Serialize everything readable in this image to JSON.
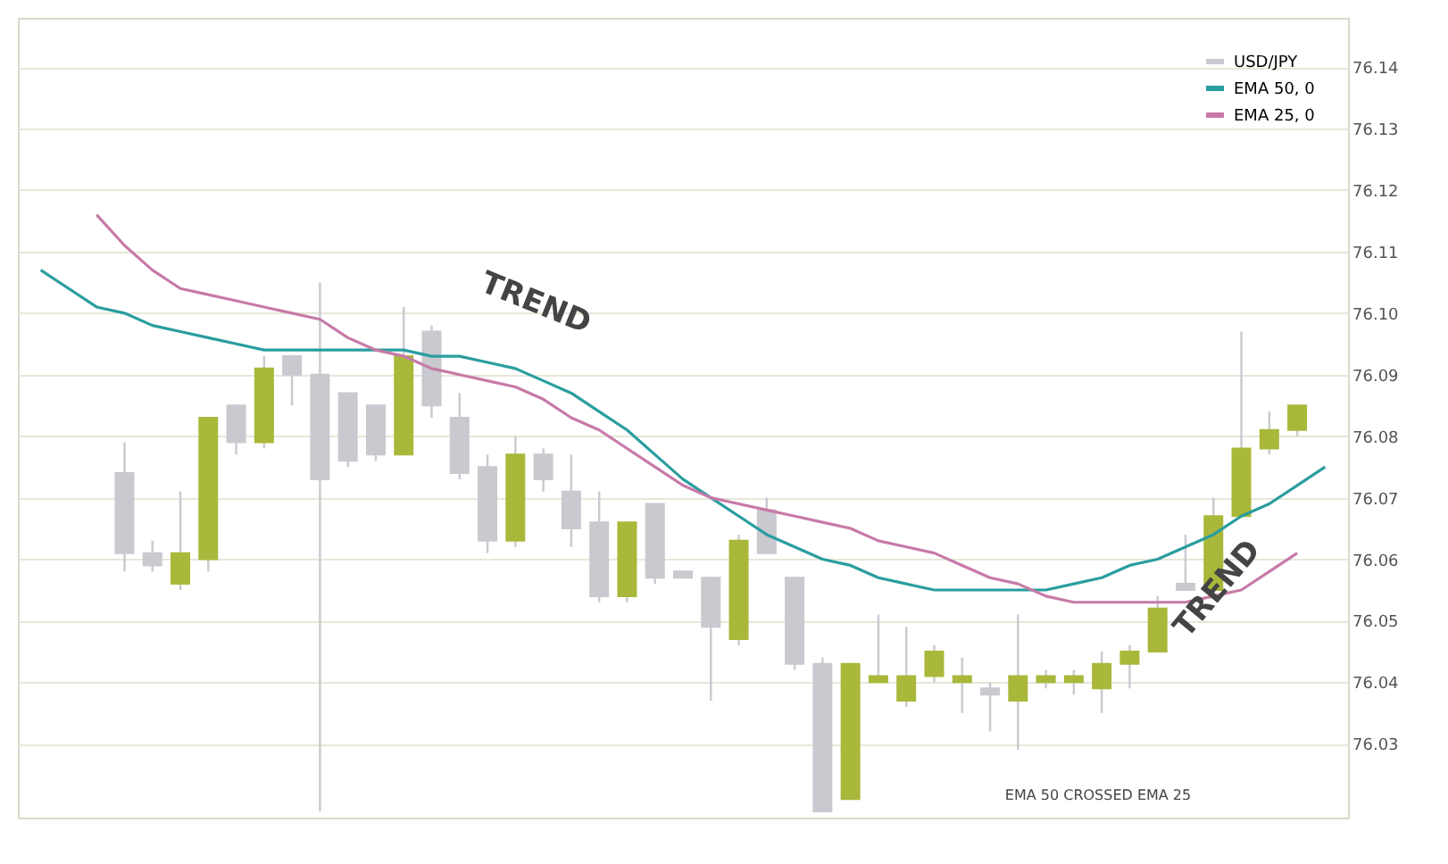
{
  "chart_data": {
    "type": "candlestick",
    "categories": [
      null,
      null,
      null,
      null,
      null,
      null,
      null,
      null,
      null,
      null,
      null,
      null,
      null,
      null,
      null,
      null,
      null,
      null,
      null,
      null,
      null,
      null,
      null,
      null,
      null,
      null,
      null,
      null,
      null,
      null,
      null,
      null,
      null,
      null,
      null,
      null,
      null,
      null,
      null,
      null,
      null,
      null,
      null,
      null,
      null,
      null,
      null
    ],
    "series": [
      {
        "name": "USD/JPY",
        "color": "#c9c9cf",
        "ohlc": [
          null,
          null,
          null,
          [
            76.074,
            76.079,
            76.058,
            76.061
          ],
          [
            76.061,
            76.063,
            76.058,
            76.059
          ],
          [
            76.056,
            76.071,
            76.055,
            76.061
          ],
          [
            76.06,
            76.083,
            76.058,
            76.083
          ],
          [
            76.085,
            76.085,
            76.077,
            76.079
          ],
          [
            76.079,
            76.093,
            76.078,
            76.091
          ],
          [
            76.093,
            76.093,
            76.085,
            76.09
          ],
          [
            76.09,
            76.105,
            76.019,
            76.073
          ],
          [
            76.087,
            76.087,
            76.075,
            76.076
          ],
          [
            76.085,
            76.085,
            76.076,
            76.077
          ],
          [
            76.077,
            76.101,
            76.077,
            76.093
          ],
          [
            76.097,
            76.098,
            76.083,
            76.085
          ],
          [
            76.083,
            76.087,
            76.073,
            76.074
          ],
          [
            76.075,
            76.077,
            76.061,
            76.063
          ],
          [
            76.063,
            76.08,
            76.062,
            76.077
          ],
          [
            76.077,
            76.078,
            76.071,
            76.073
          ],
          [
            76.071,
            76.077,
            76.062,
            76.065
          ],
          [
            76.066,
            76.071,
            76.053,
            76.054
          ],
          [
            76.054,
            76.066,
            76.053,
            76.066
          ],
          [
            76.069,
            76.069,
            76.056,
            76.057
          ],
          [
            76.058,
            76.058,
            76.057,
            76.057
          ],
          [
            76.057,
            76.057,
            76.037,
            76.049
          ],
          [
            76.047,
            76.064,
            76.046,
            76.063
          ],
          [
            76.068,
            76.07,
            76.061,
            76.061
          ],
          [
            76.057,
            76.057,
            76.042,
            76.043
          ],
          [
            76.043,
            76.044,
            76.019,
            76.019
          ],
          [
            76.021,
            76.043,
            76.021,
            76.043
          ],
          [
            76.04,
            76.051,
            76.04,
            76.041
          ],
          [
            76.037,
            76.049,
            76.036,
            76.041
          ],
          [
            76.041,
            76.046,
            76.04,
            76.045
          ],
          [
            76.04,
            76.044,
            76.035,
            76.041
          ],
          [
            76.039,
            76.04,
            76.032,
            76.038
          ],
          [
            76.037,
            76.051,
            76.029,
            76.041
          ],
          [
            76.04,
            76.042,
            76.039,
            76.041
          ],
          [
            76.04,
            76.042,
            76.038,
            76.041
          ],
          [
            76.039,
            76.045,
            76.035,
            76.043
          ],
          [
            76.043,
            76.046,
            76.039,
            76.045
          ],
          [
            76.045,
            76.054,
            76.045,
            76.052
          ],
          [
            76.056,
            76.064,
            76.055,
            76.055
          ],
          [
            76.055,
            76.07,
            76.054,
            76.067
          ],
          [
            76.067,
            76.097,
            76.067,
            76.078
          ],
          [
            76.078,
            76.084,
            76.077,
            76.081
          ],
          [
            76.081,
            76.085,
            76.08,
            76.085
          ],
          null
        ],
        "colors": [
          null,
          null,
          null,
          "#c9c9cf",
          "#c9c9cf",
          "#a9b83a",
          "#a9b83a",
          "#c9c9cf",
          "#a9b83a",
          "#c9c9cf",
          "#c9c9cf",
          "#c9c9cf",
          "#c9c9cf",
          "#a9b83a",
          "#c9c9cf",
          "#c9c9cf",
          "#c9c9cf",
          "#a9b83a",
          "#c9c9cf",
          "#c9c9cf",
          "#c9c9cf",
          "#a9b83a",
          "#c9c9cf",
          "#c9c9cf",
          "#c9c9cf",
          "#a9b83a",
          "#c9c9cf",
          "#c9c9cf",
          "#c9c9cf",
          "#a9b83a",
          "#a9b83a",
          "#a9b83a",
          "#a9b83a",
          "#a9b83a",
          "#c9c9cf",
          "#a9b83a",
          "#a9b83a",
          "#a9b83a",
          "#a9b83a",
          "#a9b83a",
          "#a9b83a",
          "#c9c9cf",
          "#a9b83a",
          "#a9b83a",
          "#a9b83a",
          "#a9b83a",
          null
        ]
      },
      {
        "name": "EMA 50, 0",
        "type": "line",
        "color": "#2a9d9f",
        "values": [
          76.107,
          76.104,
          76.101,
          76.1,
          76.098,
          76.097,
          76.096,
          76.095,
          76.094,
          76.094,
          76.094,
          76.094,
          76.094,
          76.094,
          76.093,
          76.093,
          76.092,
          76.091,
          76.089,
          76.087,
          76.084,
          76.081,
          76.077,
          76.073,
          76.07,
          76.067,
          76.064,
          76.062,
          76.06,
          76.059,
          76.057,
          76.056,
          76.055,
          76.055,
          76.055,
          76.055,
          76.055,
          76.056,
          76.057,
          76.059,
          76.06,
          76.062,
          76.064,
          76.067,
          76.069,
          76.072,
          76.075
        ]
      },
      {
        "name": "EMA 25, 0",
        "type": "line",
        "color": "#c77aa8",
        "values": [
          null,
          null,
          76.116,
          76.111,
          76.107,
          76.104,
          76.103,
          76.102,
          76.101,
          76.1,
          76.099,
          76.096,
          76.094,
          76.093,
          76.091,
          76.09,
          76.089,
          76.088,
          76.086,
          76.083,
          76.081,
          76.078,
          76.075,
          76.072,
          76.07,
          76.069,
          76.068,
          76.067,
          76.066,
          76.065,
          76.063,
          76.062,
          76.061,
          76.059,
          76.057,
          76.056,
          76.054,
          76.053,
          76.053,
          76.053,
          76.053,
          76.053,
          76.054,
          76.055,
          76.058,
          76.061,
          null
        ]
      }
    ],
    "ylim": [
      76.018,
      76.148
    ],
    "yticks": [
      76.03,
      76.04,
      76.05,
      76.06,
      76.07,
      76.08,
      76.09,
      {
        "value": 76.1,
        "label": "76.10"
      },
      76.11,
      76.12,
      76.13,
      76.14
    ],
    "grid": "y",
    "legend": "top right",
    "line_style": "solid",
    "marker": "none",
    "annotations": [
      "TREND",
      "TREND",
      "EMA 50 CROSSED EMA 25"
    ]
  }
}
